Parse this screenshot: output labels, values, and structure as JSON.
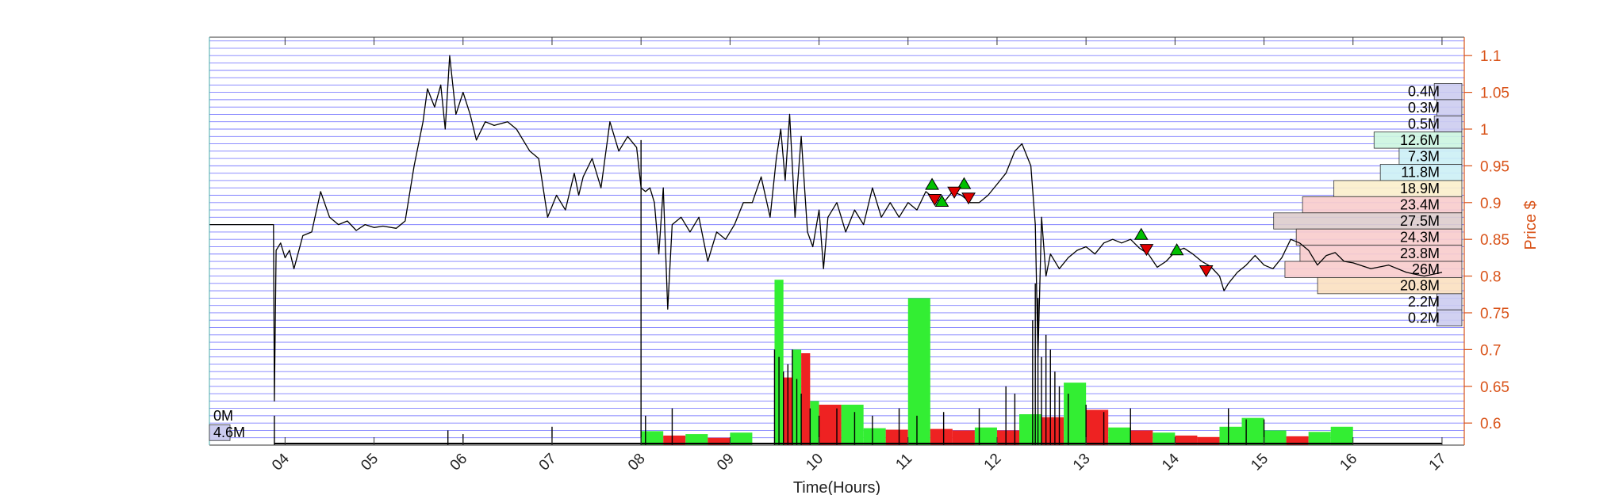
{
  "chart_data": {
    "type": "line",
    "title": "",
    "xlabel": "Time(Hours)",
    "ylabel": "Price $",
    "xlim": [
      3.15,
      17.25
    ],
    "ylim": [
      0.57,
      1.125
    ],
    "x_ticks": [
      "04",
      "05",
      "06",
      "07",
      "08",
      "09",
      "10",
      "11",
      "12",
      "13",
      "14",
      "15",
      "16",
      "17"
    ],
    "y_ticks": [
      "0.6",
      "0.65",
      "0.7",
      "0.75",
      "0.8",
      "0.85",
      "0.9",
      "0.95",
      "1",
      "1.05",
      "1.1"
    ],
    "grid": true,
    "colors": {
      "price_line": "#000000",
      "grid": "#7f7fff",
      "axis_right": "#d95319",
      "buy_marker": "#00c000",
      "sell_marker": "#e00000",
      "vol_green": "#33ee33",
      "vol_red": "#ee2222"
    },
    "price_series": [
      [
        3.15,
        0.87
      ],
      [
        3.87,
        0.87
      ],
      [
        3.88,
        0.63
      ],
      [
        3.9,
        0.835
      ],
      [
        3.95,
        0.845
      ],
      [
        4.0,
        0.825
      ],
      [
        4.05,
        0.835
      ],
      [
        4.1,
        0.81
      ],
      [
        4.2,
        0.855
      ],
      [
        4.3,
        0.86
      ],
      [
        4.4,
        0.915
      ],
      [
        4.5,
        0.88
      ],
      [
        4.6,
        0.87
      ],
      [
        4.7,
        0.875
      ],
      [
        4.8,
        0.862
      ],
      [
        4.9,
        0.87
      ],
      [
        5.0,
        0.866
      ],
      [
        5.1,
        0.868
      ],
      [
        5.25,
        0.865
      ],
      [
        5.35,
        0.875
      ],
      [
        5.45,
        0.95
      ],
      [
        5.55,
        1.01
      ],
      [
        5.6,
        1.055
      ],
      [
        5.68,
        1.03
      ],
      [
        5.75,
        1.06
      ],
      [
        5.8,
        1.0
      ],
      [
        5.85,
        1.1
      ],
      [
        5.92,
        1.02
      ],
      [
        6.0,
        1.05
      ],
      [
        6.08,
        1.02
      ],
      [
        6.15,
        0.985
      ],
      [
        6.25,
        1.01
      ],
      [
        6.35,
        1.005
      ],
      [
        6.5,
        1.01
      ],
      [
        6.6,
        1.0
      ],
      [
        6.75,
        0.97
      ],
      [
        6.85,
        0.96
      ],
      [
        6.95,
        0.88
      ],
      [
        7.05,
        0.91
      ],
      [
        7.15,
        0.89
      ],
      [
        7.25,
        0.94
      ],
      [
        7.3,
        0.91
      ],
      [
        7.35,
        0.935
      ],
      [
        7.45,
        0.96
      ],
      [
        7.55,
        0.92
      ],
      [
        7.65,
        1.01
      ],
      [
        7.75,
        0.97
      ],
      [
        7.85,
        0.99
      ],
      [
        7.95,
        0.975
      ],
      [
        8.0,
        0.92
      ],
      [
        8.05,
        0.915
      ],
      [
        8.1,
        0.92
      ],
      [
        8.15,
        0.9
      ],
      [
        8.2,
        0.83
      ],
      [
        8.25,
        0.92
      ],
      [
        8.3,
        0.755
      ],
      [
        8.35,
        0.87
      ],
      [
        8.45,
        0.88
      ],
      [
        8.55,
        0.86
      ],
      [
        8.65,
        0.88
      ],
      [
        8.75,
        0.82
      ],
      [
        8.85,
        0.86
      ],
      [
        8.95,
        0.85
      ],
      [
        9.05,
        0.87
      ],
      [
        9.15,
        0.9
      ],
      [
        9.25,
        0.9
      ],
      [
        9.35,
        0.935
      ],
      [
        9.45,
        0.88
      ],
      [
        9.52,
        0.96
      ],
      [
        9.57,
        1.0
      ],
      [
        9.62,
        0.93
      ],
      [
        9.67,
        1.02
      ],
      [
        9.73,
        0.88
      ],
      [
        9.8,
        0.99
      ],
      [
        9.87,
        0.86
      ],
      [
        9.93,
        0.84
      ],
      [
        10.0,
        0.89
      ],
      [
        10.05,
        0.81
      ],
      [
        10.1,
        0.88
      ],
      [
        10.2,
        0.9
      ],
      [
        10.3,
        0.86
      ],
      [
        10.4,
        0.89
      ],
      [
        10.5,
        0.87
      ],
      [
        10.6,
        0.92
      ],
      [
        10.7,
        0.88
      ],
      [
        10.8,
        0.9
      ],
      [
        10.9,
        0.88
      ],
      [
        11.0,
        0.9
      ],
      [
        11.1,
        0.89
      ],
      [
        11.2,
        0.915
      ],
      [
        11.3,
        0.905
      ],
      [
        11.4,
        0.9
      ],
      [
        11.5,
        0.915
      ],
      [
        11.6,
        0.91
      ],
      [
        11.7,
        0.9
      ],
      [
        11.8,
        0.9
      ],
      [
        11.9,
        0.91
      ],
      [
        12.0,
        0.925
      ],
      [
        12.1,
        0.94
      ],
      [
        12.2,
        0.97
      ],
      [
        12.28,
        0.98
      ],
      [
        12.38,
        0.95
      ],
      [
        12.43,
        0.87
      ],
      [
        12.46,
        0.69
      ],
      [
        12.5,
        0.88
      ],
      [
        12.55,
        0.8
      ],
      [
        12.6,
        0.83
      ],
      [
        12.7,
        0.81
      ],
      [
        12.8,
        0.825
      ],
      [
        12.9,
        0.835
      ],
      [
        13.0,
        0.84
      ],
      [
        13.1,
        0.83
      ],
      [
        13.2,
        0.845
      ],
      [
        13.3,
        0.85
      ],
      [
        13.4,
        0.845
      ],
      [
        13.5,
        0.85
      ],
      [
        13.6,
        0.838
      ],
      [
        13.7,
        0.83
      ],
      [
        13.8,
        0.812
      ],
      [
        13.9,
        0.82
      ],
      [
        14.0,
        0.833
      ],
      [
        14.1,
        0.838
      ],
      [
        14.2,
        0.83
      ],
      [
        14.3,
        0.82
      ],
      [
        14.4,
        0.813
      ],
      [
        14.5,
        0.8
      ],
      [
        14.55,
        0.78
      ],
      [
        14.6,
        0.79
      ],
      [
        14.7,
        0.805
      ],
      [
        14.8,
        0.815
      ],
      [
        14.9,
        0.828
      ],
      [
        15.0,
        0.815
      ],
      [
        15.1,
        0.81
      ],
      [
        15.2,
        0.825
      ],
      [
        15.3,
        0.85
      ],
      [
        15.4,
        0.845
      ],
      [
        15.5,
        0.835
      ],
      [
        15.6,
        0.815
      ],
      [
        15.7,
        0.828
      ],
      [
        15.8,
        0.832
      ],
      [
        15.9,
        0.82
      ],
      [
        16.0,
        0.818
      ],
      [
        16.2,
        0.81
      ],
      [
        16.4,
        0.815
      ],
      [
        16.6,
        0.805
      ],
      [
        16.8,
        0.8
      ],
      [
        17.0,
        0.805
      ]
    ],
    "volume_spikes": [
      [
        3.88,
        0.61
      ],
      [
        5.83,
        0.59
      ],
      [
        6.0,
        0.585
      ],
      [
        7.0,
        0.595
      ],
      [
        8.0,
        0.985
      ],
      [
        8.05,
        0.61
      ],
      [
        8.35,
        0.62
      ],
      [
        9.5,
        0.7
      ],
      [
        9.55,
        0.69
      ],
      [
        9.6,
        0.67
      ],
      [
        9.65,
        0.68
      ],
      [
        9.7,
        0.7
      ],
      [
        9.75,
        0.66
      ],
      [
        9.8,
        0.64
      ],
      [
        9.9,
        0.62
      ],
      [
        10.0,
        0.61
      ],
      [
        10.2,
        0.62
      ],
      [
        10.4,
        0.615
      ],
      [
        10.6,
        0.61
      ],
      [
        10.9,
        0.62
      ],
      [
        11.1,
        0.61
      ],
      [
        11.4,
        0.615
      ],
      [
        11.8,
        0.62
      ],
      [
        12.1,
        0.65
      ],
      [
        12.2,
        0.64
      ],
      [
        12.4,
        0.74
      ],
      [
        12.43,
        0.79
      ],
      [
        12.46,
        0.77
      ],
      [
        12.5,
        0.69
      ],
      [
        12.55,
        0.72
      ],
      [
        12.6,
        0.7
      ],
      [
        12.65,
        0.67
      ],
      [
        12.7,
        0.65
      ],
      [
        12.8,
        0.64
      ],
      [
        13.0,
        0.625
      ],
      [
        13.2,
        0.615
      ],
      [
        13.5,
        0.62
      ],
      [
        14.6,
        0.62
      ],
      [
        14.8,
        0.605
      ],
      [
        15.0,
        0.605
      ]
    ],
    "volume_bars": [
      {
        "x0": 8.0,
        "x1": 8.25,
        "y": 0.589,
        "color": "green"
      },
      {
        "x0": 8.25,
        "x1": 8.5,
        "y": 0.583,
        "color": "red"
      },
      {
        "x0": 8.5,
        "x1": 8.75,
        "y": 0.585,
        "color": "green"
      },
      {
        "x0": 8.75,
        "x1": 9.0,
        "y": 0.58,
        "color": "red"
      },
      {
        "x0": 9.0,
        "x1": 9.25,
        "y": 0.587,
        "color": "green"
      },
      {
        "x0": 9.5,
        "x1": 9.6,
        "y": 0.795,
        "color": "green"
      },
      {
        "x0": 9.6,
        "x1": 9.7,
        "y": 0.662,
        "color": "red"
      },
      {
        "x0": 9.7,
        "x1": 9.8,
        "y": 0.7,
        "color": "green"
      },
      {
        "x0": 9.8,
        "x1": 9.9,
        "y": 0.695,
        "color": "red"
      },
      {
        "x0": 9.9,
        "x1": 10.0,
        "y": 0.63,
        "color": "green"
      },
      {
        "x0": 10.0,
        "x1": 10.25,
        "y": 0.625,
        "color": "red"
      },
      {
        "x0": 10.25,
        "x1": 10.5,
        "y": 0.625,
        "color": "green"
      },
      {
        "x0": 10.5,
        "x1": 10.75,
        "y": 0.593,
        "color": "green"
      },
      {
        "x0": 10.75,
        "x1": 11.0,
        "y": 0.591,
        "color": "red"
      },
      {
        "x0": 11.0,
        "x1": 11.25,
        "y": 0.77,
        "color": "green"
      },
      {
        "x0": 11.25,
        "x1": 11.5,
        "y": 0.592,
        "color": "red"
      },
      {
        "x0": 11.5,
        "x1": 11.75,
        "y": 0.59,
        "color": "red"
      },
      {
        "x0": 11.75,
        "x1": 12.0,
        "y": 0.594,
        "color": "green"
      },
      {
        "x0": 12.0,
        "x1": 12.25,
        "y": 0.59,
        "color": "red"
      },
      {
        "x0": 12.25,
        "x1": 12.5,
        "y": 0.612,
        "color": "green"
      },
      {
        "x0": 12.5,
        "x1": 12.75,
        "y": 0.608,
        "color": "red"
      },
      {
        "x0": 12.75,
        "x1": 13.0,
        "y": 0.655,
        "color": "green"
      },
      {
        "x0": 13.0,
        "x1": 13.25,
        "y": 0.618,
        "color": "red"
      },
      {
        "x0": 13.25,
        "x1": 13.5,
        "y": 0.594,
        "color": "green"
      },
      {
        "x0": 13.5,
        "x1": 13.75,
        "y": 0.59,
        "color": "red"
      },
      {
        "x0": 13.75,
        "x1": 14.0,
        "y": 0.587,
        "color": "green"
      },
      {
        "x0": 14.0,
        "x1": 14.25,
        "y": 0.583,
        "color": "red"
      },
      {
        "x0": 14.25,
        "x1": 14.5,
        "y": 0.581,
        "color": "red"
      },
      {
        "x0": 14.5,
        "x1": 14.75,
        "y": 0.595,
        "color": "green"
      },
      {
        "x0": 14.75,
        "x1": 15.0,
        "y": 0.607,
        "color": "green"
      },
      {
        "x0": 15.0,
        "x1": 15.25,
        "y": 0.59,
        "color": "green"
      },
      {
        "x0": 15.25,
        "x1": 15.5,
        "y": 0.582,
        "color": "red"
      },
      {
        "x0": 15.5,
        "x1": 15.75,
        "y": 0.588,
        "color": "green"
      },
      {
        "x0": 15.75,
        "x1": 16.0,
        "y": 0.595,
        "color": "green"
      }
    ],
    "buy_markers": [
      [
        11.27,
        0.924
      ],
      [
        11.38,
        0.901
      ],
      [
        11.63,
        0.925
      ],
      [
        13.62,
        0.856
      ],
      [
        14.02,
        0.835
      ]
    ],
    "sell_markers": [
      [
        11.3,
        0.905
      ],
      [
        11.52,
        0.915
      ],
      [
        11.68,
        0.907
      ],
      [
        13.68,
        0.837
      ],
      [
        14.35,
        0.808
      ]
    ],
    "volume_profile": [
      {
        "label": "0.4M",
        "y0": 1.04,
        "y1": 1.062,
        "width": 0.022,
        "color": "#ccccf0"
      },
      {
        "label": "0.3M",
        "y0": 1.018,
        "y1": 1.04,
        "width": 0.02,
        "color": "#ccccf0"
      },
      {
        "label": "0.5M",
        "y0": 0.996,
        "y1": 1.018,
        "width": 0.022,
        "color": "#ccccf0"
      },
      {
        "label": "12.6M",
        "y0": 0.974,
        "y1": 0.996,
        "width": 0.07,
        "color": "#ccf5e0"
      },
      {
        "label": "7.3M",
        "y0": 0.952,
        "y1": 0.974,
        "width": 0.05,
        "color": "#ccf0f5"
      },
      {
        "label": "11.8M",
        "y0": 0.93,
        "y1": 0.952,
        "width": 0.065,
        "color": "#ccf0f5"
      },
      {
        "label": "18.9M",
        "y0": 0.908,
        "y1": 0.93,
        "width": 0.102,
        "color": "#fbeecb"
      },
      {
        "label": "23.4M",
        "y0": 0.886,
        "y1": 0.908,
        "width": 0.127,
        "color": "#f8cccc"
      },
      {
        "label": "27.5M",
        "y0": 0.864,
        "y1": 0.886,
        "width": 0.15,
        "color": "#ddcccc"
      },
      {
        "label": "24.3M",
        "y0": 0.842,
        "y1": 0.864,
        "width": 0.132,
        "color": "#f8cccc"
      },
      {
        "label": "23.8M",
        "y0": 0.82,
        "y1": 0.842,
        "width": 0.129,
        "color": "#f8cccc"
      },
      {
        "label": "26M",
        "y0": 0.798,
        "y1": 0.82,
        "width": 0.141,
        "color": "#f8cccc"
      },
      {
        "label": "20.8M",
        "y0": 0.776,
        "y1": 0.798,
        "width": 0.115,
        "color": "#fbe0c0"
      },
      {
        "label": "2.2M",
        "y0": 0.754,
        "y1": 0.776,
        "width": 0.02,
        "color": "#ccccf0"
      },
      {
        "label": "0.2M",
        "y0": 0.732,
        "y1": 0.754,
        "width": 0.02,
        "color": "#ccccf0"
      }
    ],
    "left_labels": [
      {
        "label": "0M",
        "y": 0.61
      },
      {
        "label": "4.6M",
        "y": 0.587,
        "box_color": "#ccccf0"
      }
    ]
  }
}
